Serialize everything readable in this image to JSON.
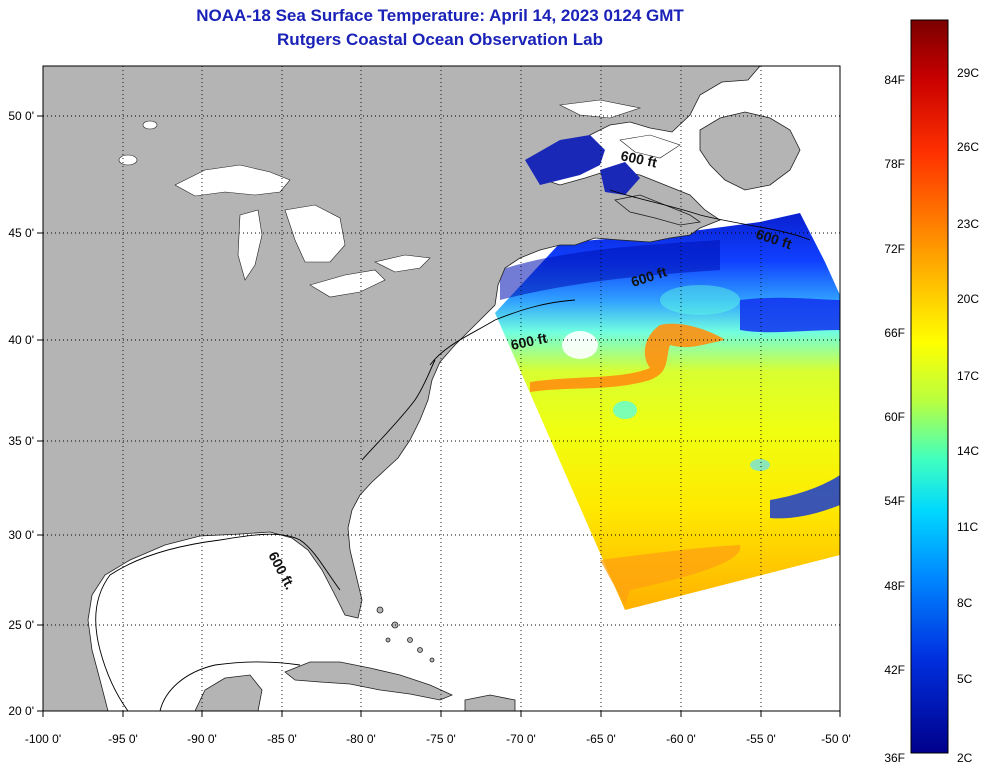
{
  "header": {
    "title": "NOAA-18 Sea Surface Temperature:  April 14, 2023 0124 GMT",
    "subtitle": "Rutgers Coastal Ocean Observation Lab"
  },
  "map": {
    "lon_range": [
      -100,
      -50
    ],
    "lat_range": [
      20,
      52.5
    ],
    "lon_ticks": [
      "-100 0'",
      "-95 0'",
      "-90 0'",
      "-85 0'",
      "-80 0'",
      "-75 0'",
      "-70 0'",
      "-65 0'",
      "-60 0'",
      "-55 0'",
      "-50 0'"
    ],
    "lat_ticks": [
      "50 0'",
      "45 0'",
      "40 0'",
      "35 0'",
      "30 0'",
      "25 0'",
      "20 0'"
    ],
    "isobath_labels": [
      "600 ft",
      "600 ft",
      "600 ft",
      "600 ft",
      "600 ft."
    ],
    "land_color": "#b4b4b4",
    "grid": "dotted"
  },
  "colorbar": {
    "f_labels": [
      "84F",
      "78F",
      "72F",
      "66F",
      "60F",
      "54F",
      "48F",
      "42F",
      "36F"
    ],
    "c_labels": [
      "29C",
      "26C",
      "23C",
      "20C",
      "17C",
      "14C",
      "11C",
      "8C",
      "5C",
      "2C"
    ],
    "colors": [
      "#7a0000",
      "#d00000",
      "#ff3000",
      "#ff8000",
      "#ffc000",
      "#ffff00",
      "#b0ff50",
      "#30ffd0",
      "#00c8ff",
      "#0070ff",
      "#0020d0",
      "#00008a"
    ]
  }
}
